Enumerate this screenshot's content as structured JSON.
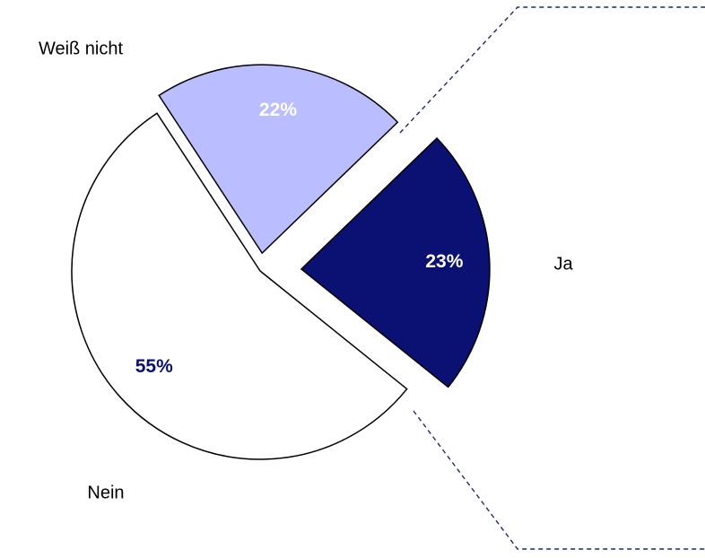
{
  "chart_data": {
    "type": "pie",
    "categories": [
      "Ja",
      "Nein",
      "Weiß nicht"
    ],
    "values": [
      23,
      55,
      22
    ],
    "value_labels": [
      "23%",
      "55%",
      "22%"
    ],
    "colors": [
      "#0a1172",
      "#ffffff",
      "#babdff"
    ],
    "value_label_colors": [
      "#ffffff",
      "#0a1172",
      "#ffffff"
    ]
  }
}
